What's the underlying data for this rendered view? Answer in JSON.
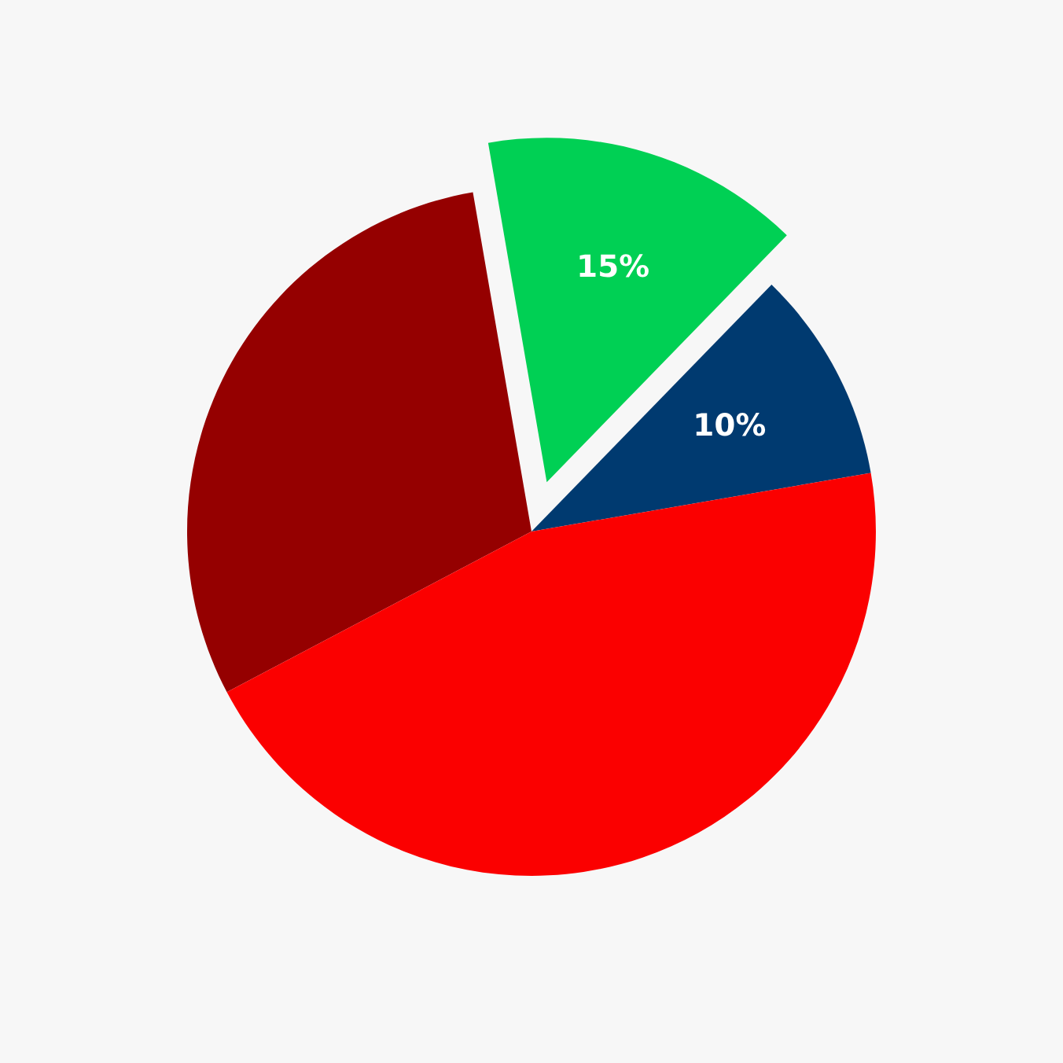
{
  "chart_data": {
    "type": "pie",
    "categories": [
      null,
      null,
      null,
      null
    ],
    "values": [
      10,
      15,
      30,
      45
    ],
    "colors": [
      "#003a70",
      "#00d054",
      "#950000",
      "#fb0000"
    ],
    "value_labels": [
      "10%",
      "15%",
      null,
      null
    ]
  }
}
